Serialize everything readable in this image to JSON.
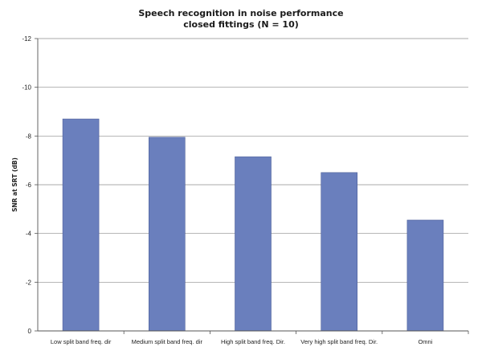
{
  "chart_data": {
    "type": "bar",
    "title": "Speech recognition in noise performance",
    "subtitle": "closed fittings (N = 10)",
    "xlabel": "",
    "ylabel": "SNR at SRT (dB)",
    "categories": [
      "Low split band freq. dir",
      "Medium split band freq. dir",
      "High split band freq. Dir.",
      "Very high split band freq. Dir.",
      "Omni"
    ],
    "values": [
      -8.7,
      -7.95,
      -7.15,
      -6.5,
      -4.55
    ],
    "ylim": [
      0,
      -12
    ],
    "yticks": [
      "-12",
      "-10",
      "-8",
      "-6",
      "-4",
      "-2",
      "0"
    ],
    "grid": "horizontal",
    "bar_color": "#6a7fbd",
    "legend": "none"
  }
}
